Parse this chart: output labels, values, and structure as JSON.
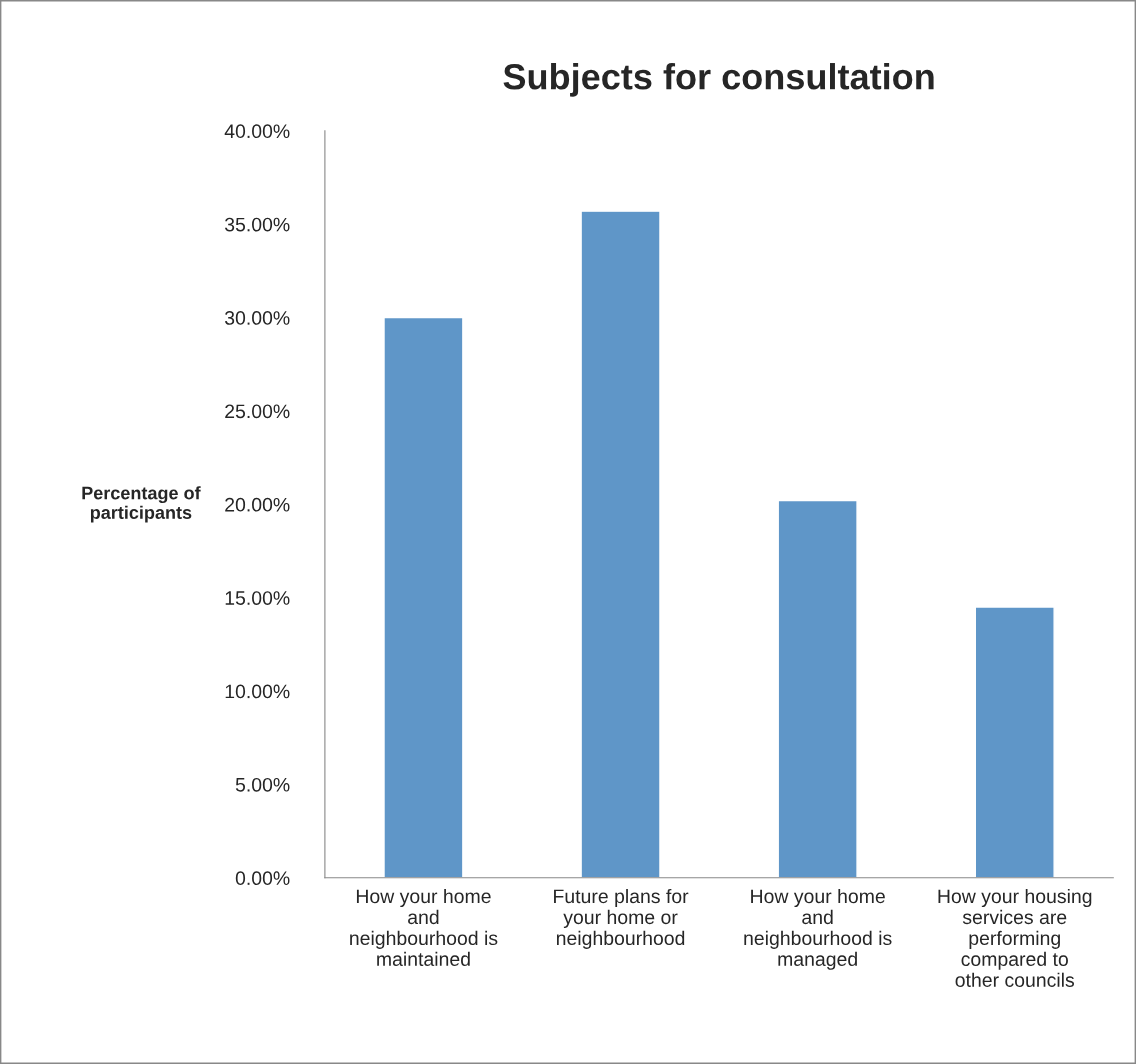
{
  "chart_data": {
    "type": "bar",
    "title": "Subjects for consultation",
    "ylabel": "Percentage of\nparticipants",
    "categories": [
      "How your home\nand\nneighbourhood is\nmaintained",
      "Future plans for\nyour home or\nneighbourhood",
      "How your home\nand\nneighbourhood is\nmanaged",
      "How your housing\nservices are\nperforming\ncompared to\nother councils"
    ],
    "values": [
      30.0,
      35.7,
      20.2,
      14.5
    ],
    "color": "#5f96c8",
    "ylim": [
      0,
      40
    ],
    "yticks": [
      {
        "value": 0,
        "label": "0.00%"
      },
      {
        "value": 5,
        "label": "5.00%"
      },
      {
        "value": 10,
        "label": "10.00%"
      },
      {
        "value": 15,
        "label": "15.00%"
      },
      {
        "value": 20,
        "label": "20.00%"
      },
      {
        "value": 25,
        "label": "25.00%"
      },
      {
        "value": 30,
        "label": "30.00%"
      },
      {
        "value": 35,
        "label": "35.00%"
      },
      {
        "value": 40,
        "label": "40.00%"
      }
    ],
    "grid": false
  }
}
